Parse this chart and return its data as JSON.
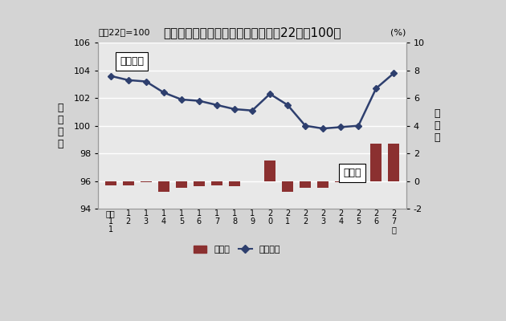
{
  "title": "鳥取市消費者物価指数の推移（平成22年＝100）",
  "subtitle": "平成22年=100",
  "xlabel_labels": [
    "平成\n1\n1",
    "1\n2",
    "1\n3",
    "1\n4",
    "1\n5",
    "1\n6",
    "1\n7",
    "1\n8",
    "1\n9",
    "2\n0",
    "2\n1",
    "2\n2",
    "2\n3",
    "2\n4",
    "2\n5",
    "2\n6",
    "2\n7\n年"
  ],
  "index_values": [
    103.6,
    103.3,
    103.2,
    102.4,
    101.9,
    101.8,
    101.5,
    101.2,
    101.1,
    102.3,
    101.5,
    100.0,
    99.8,
    99.9,
    100.0,
    102.7,
    103.8
  ],
  "yoy_values": [
    -0.3,
    -0.3,
    -0.1,
    -0.8,
    -0.5,
    -0.4,
    -0.3,
    -0.4,
    0.0,
    1.5,
    -0.8,
    -0.5,
    -0.5,
    -0.1,
    0.4,
    2.7,
    2.7
  ],
  "left_ylim": [
    94,
    106
  ],
  "left_yticks": [
    94,
    96,
    98,
    100,
    102,
    104,
    106
  ],
  "right_ylim": [
    -2,
    10
  ],
  "right_yticks": [
    -2,
    0,
    2,
    4,
    6,
    8,
    10
  ],
  "line_color": "#2e3f6e",
  "bar_color": "#8b3030",
  "plot_bg_color": "#e8e8e8",
  "fig_bg_color": "#d4d4d4",
  "grid_color": "#ffffff",
  "annotation_sogo": "総合指数",
  "annotation_mae": "前年比",
  "ylabel_left": "総\n合\n指\n数",
  "ylabel_right": "前\n年\n比",
  "pct_label": "(%)",
  "legend_bar": "前年比",
  "legend_line": "総合指数"
}
